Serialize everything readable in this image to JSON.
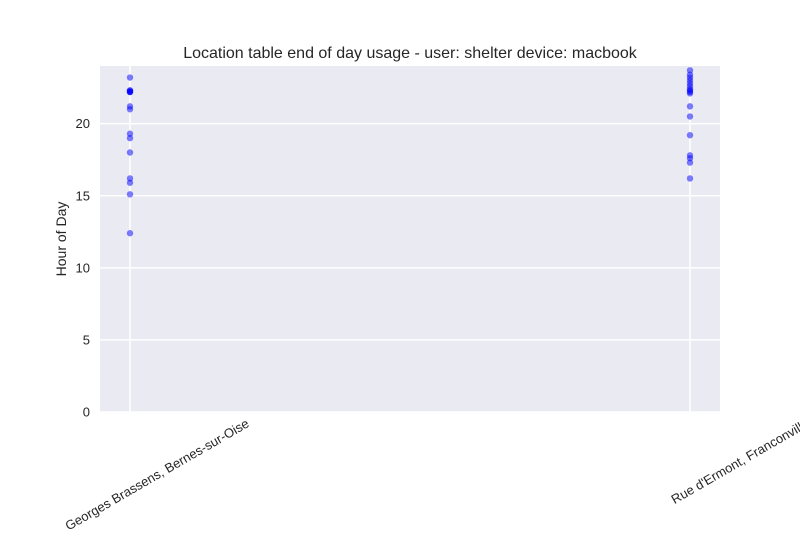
{
  "chart_data": {
    "type": "scatter",
    "title": "Location table end of day usage -  user: shelter device: macbook",
    "xlabel": "",
    "ylabel": "Hour of Day",
    "categories": [
      "Georges Brassens, Bernes-sur-Oise",
      "Rue d'Ermont, Franconville"
    ],
    "ylim": [
      0,
      24
    ],
    "yticks": [
      0,
      5,
      10,
      15,
      20
    ],
    "grid": true,
    "series": [
      {
        "category": "Georges Brassens, Bernes-sur-Oise",
        "values": [
          23.2,
          22.3,
          22.3,
          22.2,
          22.2,
          22.2,
          21.2,
          21.0,
          19.3,
          19.0,
          18.0,
          16.2,
          15.9,
          15.1,
          12.4
        ]
      },
      {
        "category": "Rue d'Ermont, Franconville",
        "values": [
          23.7,
          23.4,
          23.2,
          23.0,
          22.8,
          22.6,
          22.4,
          22.3,
          22.2,
          22.1,
          21.2,
          20.5,
          19.2,
          17.8,
          17.6,
          17.3,
          16.2
        ]
      }
    ],
    "colors": {
      "marker": "#0000ff",
      "plot_bg": "#eaeaf2",
      "grid": "#ffffff"
    }
  }
}
